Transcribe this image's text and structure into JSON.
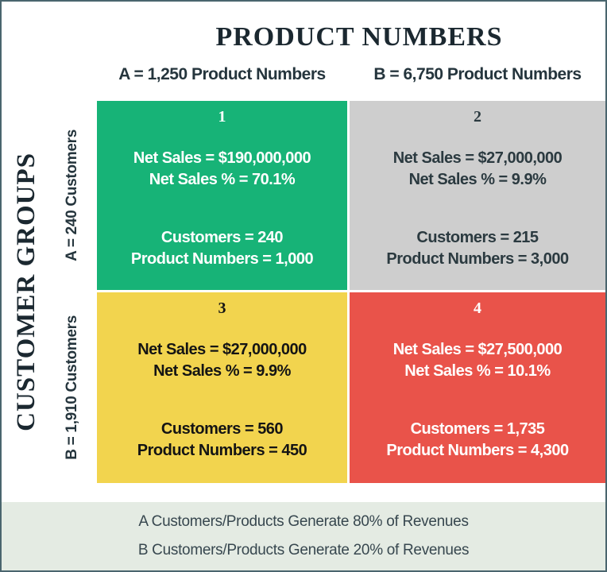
{
  "title": "PRODUCT NUMBERS",
  "axes": {
    "left_title": "CUSTOMER GROUPS",
    "row_labels": [
      "A = 240 Customers",
      "B = 1,910 Customers"
    ],
    "col_labels": [
      "A = 1,250 Product Numbers",
      "B = 6,750 Product Numbers"
    ]
  },
  "quadrants": [
    {
      "number": "1",
      "bg": "#17b377",
      "fg": "#ffffff",
      "net_sales": "Net Sales = $190,000,000",
      "net_sales_pct": "Net Sales % = 70.1%",
      "customers": "Customers = 240",
      "product_numbers": "Product Numbers = 1,000"
    },
    {
      "number": "2",
      "bg": "#cecece",
      "fg": "#2b3a40",
      "net_sales": "Net Sales = $27,000,000",
      "net_sales_pct": "Net Sales % = 9.9%",
      "customers": "Customers = 215",
      "product_numbers": "Product Numbers = 3,000"
    },
    {
      "number": "3",
      "bg": "#f2d44e",
      "fg": "#141414",
      "net_sales": "Net Sales = $27,000,000",
      "net_sales_pct": "Net Sales % = 9.9%",
      "customers": "Customers = 560",
      "product_numbers": "Product Numbers = 450"
    },
    {
      "number": "4",
      "bg": "#e9534a",
      "fg": "#ffffff",
      "net_sales": "Net Sales = $27,500,000",
      "net_sales_pct": "Net Sales % = 10.1%",
      "customers": "Customers = 1,735",
      "product_numbers": "Product Numbers = 4,300"
    }
  ],
  "footer": {
    "bg": "#e4ebe3",
    "lines": [
      "A Customers/Products Generate 80% of Revenues",
      "B Customers/Products Generate 20% of Revenues"
    ]
  },
  "colors": {
    "border": "#4a656e",
    "title_text": "#1b2830",
    "header_text": "#25353d",
    "footer_text": "#37474f"
  }
}
